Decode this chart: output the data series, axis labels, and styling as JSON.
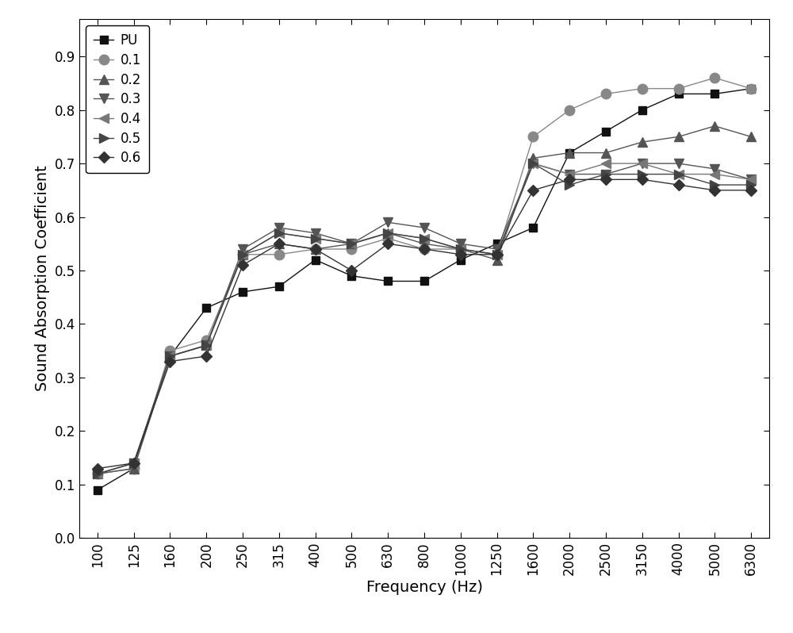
{
  "frequencies": [
    100,
    125,
    160,
    200,
    250,
    315,
    400,
    500,
    630,
    800,
    1000,
    1250,
    1600,
    2000,
    2500,
    3150,
    4000,
    5000,
    6300
  ],
  "series_order": [
    "PU",
    "0.1",
    "0.2",
    "0.3",
    "0.4",
    "0.5",
    "0.6"
  ],
  "series": {
    "PU": {
      "label": "PU",
      "marker": "s",
      "color": "#111111",
      "markersize": 7,
      "values": [
        0.09,
        0.13,
        0.34,
        0.43,
        0.46,
        0.47,
        0.52,
        0.49,
        0.48,
        0.48,
        0.52,
        0.55,
        0.58,
        0.72,
        0.76,
        0.8,
        0.83,
        0.83,
        0.84
      ]
    },
    "0.1": {
      "label": "0.1",
      "marker": "o",
      "color": "#888888",
      "markersize": 9,
      "values": [
        0.12,
        0.13,
        0.35,
        0.37,
        0.53,
        0.53,
        0.54,
        0.54,
        0.56,
        0.54,
        0.54,
        0.53,
        0.75,
        0.8,
        0.83,
        0.84,
        0.84,
        0.86,
        0.84
      ]
    },
    "0.2": {
      "label": "0.2",
      "marker": "^",
      "color": "#555555",
      "markersize": 8,
      "values": [
        0.12,
        0.13,
        0.34,
        0.36,
        0.53,
        0.55,
        0.54,
        0.55,
        0.57,
        0.55,
        0.54,
        0.52,
        0.71,
        0.72,
        0.72,
        0.74,
        0.75,
        0.77,
        0.75
      ]
    },
    "0.3": {
      "label": "0.3",
      "marker": "v",
      "color": "#555555",
      "markersize": 8,
      "values": [
        0.12,
        0.14,
        0.34,
        0.36,
        0.54,
        0.58,
        0.57,
        0.55,
        0.59,
        0.58,
        0.55,
        0.54,
        0.7,
        0.68,
        0.68,
        0.7,
        0.7,
        0.69,
        0.67
      ]
    },
    "0.4": {
      "label": "0.4",
      "marker": "<",
      "color": "#777777",
      "markersize": 8,
      "values": [
        0.12,
        0.14,
        0.34,
        0.36,
        0.53,
        0.57,
        0.56,
        0.55,
        0.57,
        0.56,
        0.54,
        0.53,
        0.7,
        0.68,
        0.7,
        0.7,
        0.68,
        0.68,
        0.67
      ]
    },
    "0.5": {
      "label": "0.5",
      "marker": ">",
      "color": "#444444",
      "markersize": 8,
      "values": [
        0.12,
        0.14,
        0.34,
        0.36,
        0.53,
        0.57,
        0.56,
        0.55,
        0.57,
        0.56,
        0.54,
        0.53,
        0.7,
        0.66,
        0.68,
        0.68,
        0.68,
        0.66,
        0.66
      ]
    },
    "0.6": {
      "label": "0.6",
      "marker": "D",
      "color": "#333333",
      "markersize": 7,
      "values": [
        0.13,
        0.14,
        0.33,
        0.34,
        0.51,
        0.55,
        0.54,
        0.5,
        0.55,
        0.54,
        0.53,
        0.53,
        0.65,
        0.67,
        0.67,
        0.67,
        0.66,
        0.65,
        0.65
      ]
    }
  },
  "xlabel": "Frequency (Hz)",
  "ylabel": "Sound Absorption Coefficient",
  "ylim": [
    0.0,
    0.97
  ],
  "yticks": [
    0.0,
    0.1,
    0.2,
    0.3,
    0.4,
    0.5,
    0.6,
    0.7,
    0.8,
    0.9
  ],
  "background_color": "#ffffff",
  "linewidth": 1.0,
  "legend_loc": "upper left",
  "tick_fontsize": 12,
  "label_fontsize": 14,
  "legend_fontsize": 12
}
